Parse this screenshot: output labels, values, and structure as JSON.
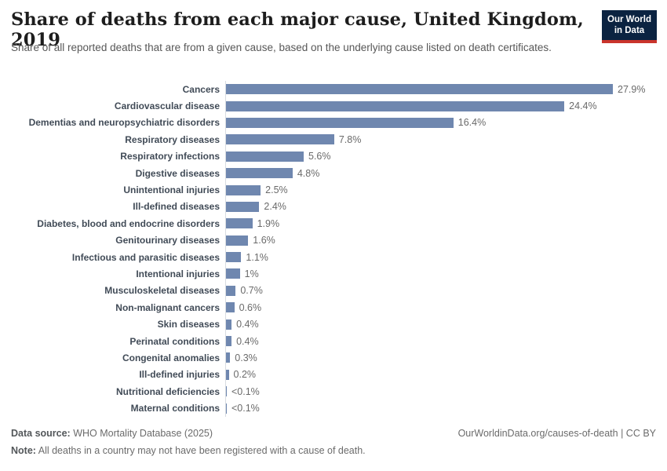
{
  "header": {
    "title": "Share of deaths from each major cause, United Kingdom, 2019",
    "subtitle": "Share of all reported deaths that are from a given cause, based on the underlying cause listed on death certificates.",
    "logo": {
      "line1": "Our World",
      "line2": "in Data"
    }
  },
  "chart_data": {
    "type": "bar",
    "orientation": "horizontal",
    "title": "Share of deaths from each major cause, United Kingdom, 2019",
    "unit": "%",
    "xlim": [
      0,
      27.9
    ],
    "grid": false,
    "legend": "none",
    "categories": [
      "Cancers",
      "Cardiovascular disease",
      "Dementias and neuropsychiatric disorders",
      "Respiratory diseases",
      "Respiratory infections",
      "Digestive diseases",
      "Unintentional injuries",
      "Ill-defined diseases",
      "Diabetes, blood and endocrine disorders",
      "Genitourinary diseases",
      "Infectious and parasitic diseases",
      "Intentional injuries",
      "Musculoskeletal diseases",
      "Non-malignant cancers",
      "Skin diseases",
      "Perinatal conditions",
      "Congenital anomalies",
      "Ill-defined injuries",
      "Nutritional deficiencies",
      "Maternal conditions"
    ],
    "values": [
      27.9,
      24.4,
      16.4,
      7.8,
      5.6,
      4.8,
      2.5,
      2.4,
      1.9,
      1.6,
      1.1,
      1,
      0.7,
      0.6,
      0.4,
      0.4,
      0.3,
      0.2,
      0.05,
      0.05
    ],
    "value_labels": [
      "27.9%",
      "24.4%",
      "16.4%",
      "7.8%",
      "5.6%",
      "4.8%",
      "2.5%",
      "2.4%",
      "1.9%",
      "1.6%",
      "1.1%",
      "1%",
      "0.7%",
      "0.6%",
      "0.4%",
      "0.4%",
      "0.3%",
      "0.2%",
      "<0.1%",
      "<0.1%"
    ]
  },
  "footer": {
    "source_label": "Data source:",
    "source_text": " WHO Mortality Database (2025)",
    "link_text": "OurWorldinData.org/causes-of-death | CC BY",
    "note_label": "Note:",
    "note_text": " All deaths in a country may not have been registered with a cause of death."
  },
  "colors": {
    "bar": "#6f87af",
    "axis_line": "#d8dce1",
    "logo_background": "#0b2341",
    "logo_underline": "#ca342c"
  }
}
